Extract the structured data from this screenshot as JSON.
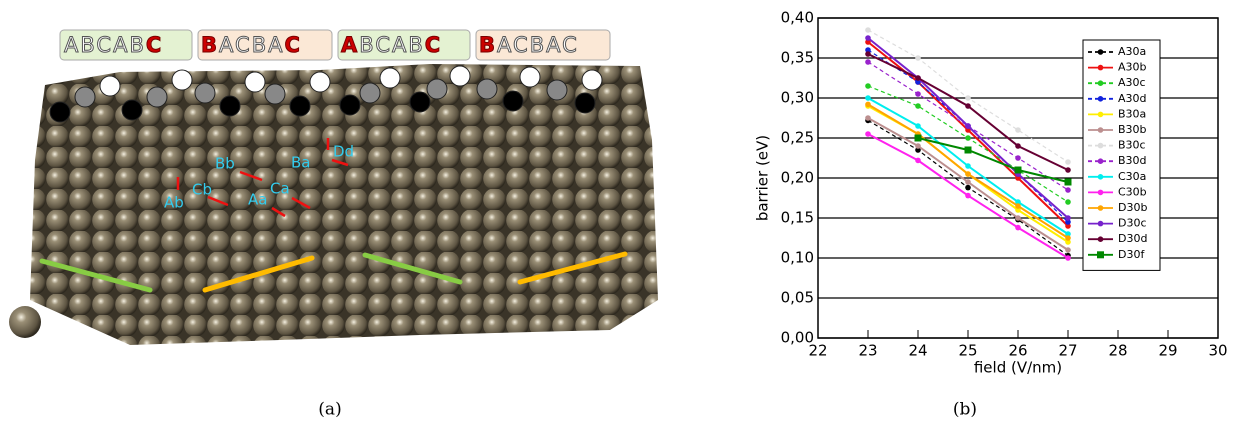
{
  "panel_a": {
    "sequences": [
      [
        "A",
        "B",
        "C",
        "A",
        "B",
        "C"
      ],
      [
        "B",
        "A",
        "C",
        "B",
        "A",
        "C"
      ],
      [
        "A",
        "B",
        "C",
        "A",
        "B",
        "C"
      ],
      [
        "B",
        "A",
        "C",
        "B",
        "A",
        "C"
      ]
    ],
    "sites": [
      "Dd",
      "Bb",
      "Ba",
      "Cb",
      "Ca",
      "Ab",
      "Aa"
    ],
    "caption": "(a)"
  },
  "caption_b": "(b)",
  "chart_data": {
    "type": "line",
    "x_label": "field (V/nm)",
    "y_label": "barrier (eV)",
    "xlim": [
      22,
      30
    ],
    "xticks": [
      22,
      23,
      24,
      25,
      26,
      27,
      28,
      29,
      30
    ],
    "ylim": [
      0,
      0.4
    ],
    "yticks": [
      {
        "value": 0,
        "label": "0,00"
      },
      {
        "value": 0.05,
        "label": "0,05"
      },
      {
        "value": 0.1,
        "label": "0,10"
      },
      {
        "value": 0.15,
        "label": "0,15"
      },
      {
        "value": 0.2,
        "label": "0,20"
      },
      {
        "value": 0.25,
        "label": "0,25"
      },
      {
        "value": 0.3,
        "label": "0,30"
      },
      {
        "value": 0.35,
        "label": "0,35"
      },
      {
        "value": 0.4,
        "label": "0,40"
      }
    ],
    "grid": true,
    "x": [
      23,
      24,
      25,
      26,
      27
    ],
    "series": [
      {
        "name": "A30a",
        "color": "#000000",
        "style": "dashed",
        "values": [
          0.272,
          0.235,
          0.188,
          0.148,
          0.103
        ]
      },
      {
        "name": "A30b",
        "color": "#ee1111",
        "style": "solid",
        "values": [
          0.37,
          0.32,
          0.26,
          0.2,
          0.14
        ]
      },
      {
        "name": "A30c",
        "color": "#22cc22",
        "style": "dashed",
        "values": [
          0.315,
          0.29,
          0.25,
          0.21,
          0.17
        ]
      },
      {
        "name": "A30d",
        "color": "#1122dd",
        "style": "dashed",
        "values": [
          0.36,
          0.32,
          0.265,
          0.205,
          0.145
        ]
      },
      {
        "name": "B30a",
        "color": "#ffee00",
        "style": "solid",
        "values": [
          0.29,
          0.255,
          0.205,
          0.16,
          0.12
        ]
      },
      {
        "name": "B30b",
        "color": "#bc8f8f",
        "style": "solid",
        "values": [
          0.275,
          0.24,
          0.195,
          0.15,
          0.11
        ]
      },
      {
        "name": "B30c",
        "color": "#dddddd",
        "style": "dashed",
        "values": [
          0.385,
          0.35,
          0.3,
          0.26,
          0.22
        ]
      },
      {
        "name": "B30d",
        "color": "#9922cc",
        "style": "dashed",
        "values": [
          0.345,
          0.305,
          0.265,
          0.225,
          0.185
        ]
      },
      {
        "name": "C30a",
        "color": "#00eeee",
        "style": "solid",
        "values": [
          0.3,
          0.265,
          0.215,
          0.17,
          0.13
        ]
      },
      {
        "name": "C30b",
        "color": "#ff22ee",
        "style": "solid",
        "values": [
          0.255,
          0.222,
          0.178,
          0.138,
          0.1
        ]
      },
      {
        "name": "D30b",
        "color": "#ffa500",
        "style": "solid",
        "values": [
          0.292,
          0.255,
          0.205,
          0.165,
          0.125
        ]
      },
      {
        "name": "D30c",
        "color": "#7722cc",
        "style": "solid",
        "values": [
          0.375,
          0.325,
          0.265,
          0.205,
          0.15
        ]
      },
      {
        "name": "D30d",
        "color": "#660033",
        "style": "solid",
        "values": [
          0.355,
          0.325,
          0.29,
          0.24,
          0.21
        ]
      },
      {
        "name": "D30f",
        "color": "#008800",
        "style": "solid",
        "marker": "square",
        "values": [
          null,
          0.25,
          0.235,
          0.21,
          0.195
        ]
      }
    ]
  }
}
